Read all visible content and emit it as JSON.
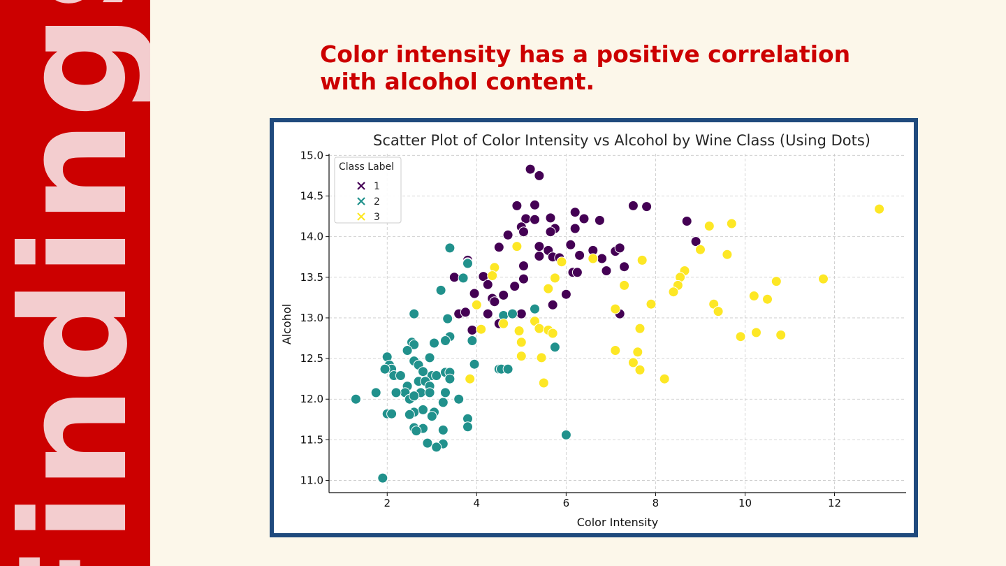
{
  "sidebar": {
    "title": "Findings"
  },
  "headline": {
    "line1": "Color intensity has a positive correlation",
    "line2": "with alcohol content."
  },
  "colors": {
    "background": "#fcf7ea",
    "sidebar": "#cc0000",
    "sidebar_text": "#f3cdcf",
    "headline": "#cc0000",
    "frame": "#1f4a7d",
    "grid": "#c8c8c8"
  },
  "chart_data": {
    "type": "scatter",
    "title": "Scatter Plot of Color Intensity vs Alcohol by Wine Class (Using Dots)",
    "xlabel": "Color Intensity",
    "ylabel": "Alcohol",
    "xlim": [
      0.7,
      13.6
    ],
    "ylim": [
      10.85,
      15.02
    ],
    "xticks": [
      2,
      4,
      6,
      8,
      10,
      12
    ],
    "yticks": [
      11.0,
      11.5,
      12.0,
      12.5,
      13.0,
      13.5,
      14.0,
      14.5,
      15.0
    ],
    "grid": true,
    "legend": {
      "title": "Class Label",
      "position": "top-left",
      "marker": "x"
    },
    "series": [
      {
        "name": "1",
        "color": "#440154",
        "points": [
          [
            5.2,
            14.83
          ],
          [
            5.4,
            14.75
          ],
          [
            4.9,
            14.38
          ],
          [
            5.3,
            14.39
          ],
          [
            5.1,
            14.22
          ],
          [
            5.3,
            14.21
          ],
          [
            5.65,
            14.23
          ],
          [
            5.75,
            14.1
          ],
          [
            5.0,
            14.12
          ],
          [
            5.05,
            14.06
          ],
          [
            5.65,
            14.06
          ],
          [
            6.2,
            14.3
          ],
          [
            6.4,
            14.22
          ],
          [
            6.75,
            14.2
          ],
          [
            6.2,
            14.1
          ],
          [
            4.7,
            14.02
          ],
          [
            7.5,
            14.38
          ],
          [
            7.8,
            14.37
          ],
          [
            8.7,
            14.19
          ],
          [
            8.9,
            13.94
          ],
          [
            6.1,
            13.9
          ],
          [
            6.6,
            13.83
          ],
          [
            7.1,
            13.82
          ],
          [
            7.2,
            13.86
          ],
          [
            5.6,
            13.83
          ],
          [
            5.4,
            13.88
          ],
          [
            5.4,
            13.76
          ],
          [
            5.7,
            13.75
          ],
          [
            5.85,
            13.74
          ],
          [
            6.3,
            13.77
          ],
          [
            6.8,
            13.73
          ],
          [
            7.3,
            13.63
          ],
          [
            6.9,
            13.58
          ],
          [
            6.15,
            13.56
          ],
          [
            6.25,
            13.56
          ],
          [
            5.05,
            13.64
          ],
          [
            4.5,
            13.87
          ],
          [
            4.15,
            13.51
          ],
          [
            3.8,
            13.71
          ],
          [
            3.8,
            13.68
          ],
          [
            3.5,
            13.5
          ],
          [
            4.25,
            13.41
          ],
          [
            4.85,
            13.39
          ],
          [
            5.05,
            13.48
          ],
          [
            3.95,
            13.3
          ],
          [
            4.6,
            13.28
          ],
          [
            4.35,
            13.24
          ],
          [
            4.4,
            13.2
          ],
          [
            6.0,
            13.29
          ],
          [
            5.7,
            13.16
          ],
          [
            3.6,
            13.05
          ],
          [
            3.75,
            13.07
          ],
          [
            4.25,
            13.05
          ],
          [
            5.0,
            13.05
          ],
          [
            7.2,
            13.05
          ],
          [
            4.5,
            12.93
          ],
          [
            3.9,
            12.85
          ]
        ]
      },
      {
        "name": "2",
        "color": "#21918c",
        "points": [
          [
            3.4,
            13.86
          ],
          [
            3.8,
            13.67
          ],
          [
            3.7,
            13.49
          ],
          [
            3.2,
            13.34
          ],
          [
            2.6,
            13.05
          ],
          [
            3.35,
            12.99
          ],
          [
            4.6,
            13.03
          ],
          [
            4.8,
            13.05
          ],
          [
            5.3,
            13.11
          ],
          [
            3.4,
            12.77
          ],
          [
            3.9,
            12.72
          ],
          [
            3.3,
            12.72
          ],
          [
            3.05,
            12.69
          ],
          [
            2.55,
            12.7
          ],
          [
            2.6,
            12.67
          ],
          [
            2.45,
            12.6
          ],
          [
            2.0,
            12.52
          ],
          [
            2.95,
            12.51
          ],
          [
            2.6,
            12.47
          ],
          [
            2.7,
            12.42
          ],
          [
            2.05,
            12.42
          ],
          [
            2.1,
            12.37
          ],
          [
            1.95,
            12.37
          ],
          [
            3.95,
            12.43
          ],
          [
            4.5,
            12.37
          ],
          [
            4.55,
            12.37
          ],
          [
            4.7,
            12.37
          ],
          [
            5.75,
            12.64
          ],
          [
            2.15,
            12.29
          ],
          [
            2.3,
            12.29
          ],
          [
            2.8,
            12.34
          ],
          [
            3.0,
            12.29
          ],
          [
            3.1,
            12.29
          ],
          [
            3.3,
            12.33
          ],
          [
            3.4,
            12.33
          ],
          [
            3.4,
            12.25
          ],
          [
            2.7,
            12.22
          ],
          [
            2.85,
            12.22
          ],
          [
            2.45,
            12.16
          ],
          [
            2.95,
            12.16
          ],
          [
            2.4,
            12.08
          ],
          [
            2.2,
            12.08
          ],
          [
            2.75,
            12.08
          ],
          [
            2.95,
            12.08
          ],
          [
            3.3,
            12.08
          ],
          [
            2.5,
            12.0
          ],
          [
            2.6,
            12.04
          ],
          [
            1.75,
            12.08
          ],
          [
            1.3,
            12.0
          ],
          [
            3.6,
            12.0
          ],
          [
            3.25,
            11.96
          ],
          [
            2.8,
            11.87
          ],
          [
            2.6,
            11.84
          ],
          [
            3.05,
            11.84
          ],
          [
            2.0,
            11.82
          ],
          [
            2.1,
            11.82
          ],
          [
            2.5,
            11.81
          ],
          [
            3.0,
            11.79
          ],
          [
            3.8,
            11.76
          ],
          [
            3.8,
            11.66
          ],
          [
            2.6,
            11.65
          ],
          [
            2.8,
            11.64
          ],
          [
            2.65,
            11.61
          ],
          [
            3.25,
            11.62
          ],
          [
            6.0,
            11.56
          ],
          [
            2.9,
            11.46
          ],
          [
            3.25,
            11.45
          ],
          [
            3.1,
            11.41
          ],
          [
            1.9,
            11.03
          ]
        ]
      },
      {
        "name": "3",
        "color": "#fde725",
        "points": [
          [
            13.0,
            14.34
          ],
          [
            9.7,
            14.16
          ],
          [
            9.2,
            14.13
          ],
          [
            9.0,
            13.84
          ],
          [
            9.6,
            13.78
          ],
          [
            4.9,
            13.88
          ],
          [
            6.6,
            13.73
          ],
          [
            5.9,
            13.69
          ],
          [
            7.7,
            13.71
          ],
          [
            4.4,
            13.62
          ],
          [
            4.35,
            13.52
          ],
          [
            8.65,
            13.58
          ],
          [
            8.55,
            13.5
          ],
          [
            8.5,
            13.4
          ],
          [
            8.4,
            13.32
          ],
          [
            5.75,
            13.49
          ],
          [
            5.6,
            13.36
          ],
          [
            7.3,
            13.4
          ],
          [
            11.75,
            13.48
          ],
          [
            10.7,
            13.45
          ],
          [
            10.2,
            13.27
          ],
          [
            10.5,
            13.23
          ],
          [
            7.9,
            13.17
          ],
          [
            9.3,
            13.17
          ],
          [
            9.4,
            13.08
          ],
          [
            4.0,
            13.16
          ],
          [
            7.1,
            13.11
          ],
          [
            5.3,
            12.96
          ],
          [
            5.4,
            12.87
          ],
          [
            5.6,
            12.85
          ],
          [
            5.7,
            12.81
          ],
          [
            4.6,
            12.93
          ],
          [
            4.1,
            12.86
          ],
          [
            4.95,
            12.84
          ],
          [
            7.65,
            12.87
          ],
          [
            5.0,
            12.7
          ],
          [
            7.1,
            12.6
          ],
          [
            7.6,
            12.58
          ],
          [
            9.9,
            12.77
          ],
          [
            10.25,
            12.82
          ],
          [
            10.8,
            12.79
          ],
          [
            5.0,
            12.53
          ],
          [
            5.45,
            12.51
          ],
          [
            7.5,
            12.45
          ],
          [
            7.65,
            12.36
          ],
          [
            3.85,
            12.25
          ],
          [
            8.2,
            12.25
          ],
          [
            5.5,
            12.2
          ]
        ]
      }
    ]
  }
}
